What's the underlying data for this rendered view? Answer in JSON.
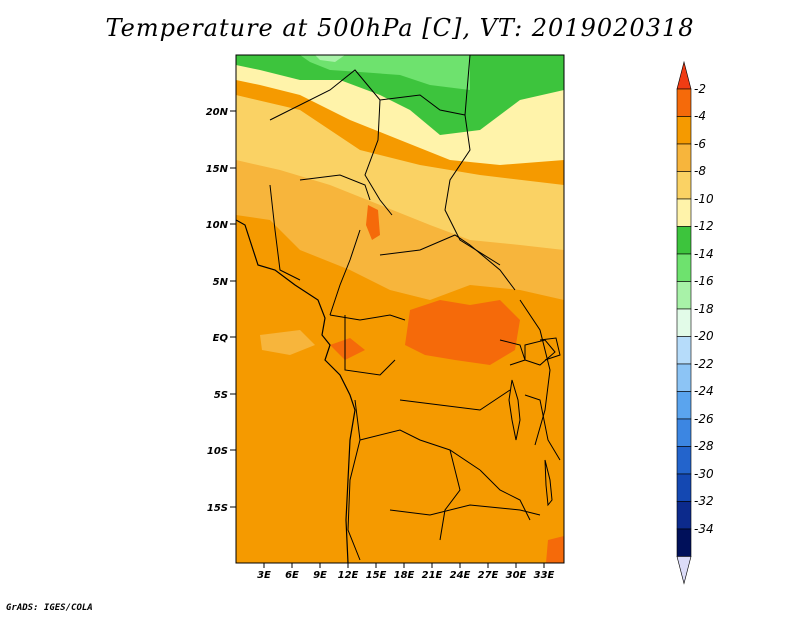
{
  "title": "Temperature at 500hPa [C], VT: 2019020318",
  "credit": "GrADS: IGES/COLA",
  "map": {
    "region": "Central Africa",
    "lat_labels": [
      "20N",
      "15N",
      "10N",
      "5N",
      "EQ",
      "5S",
      "10S",
      "15S"
    ],
    "lon_labels": [
      "3E",
      "6E",
      "9E",
      "12E",
      "15E",
      "18E",
      "21E",
      "24E",
      "27E",
      "30E",
      "33E"
    ]
  },
  "colorbar": {
    "labels": [
      "-2",
      "-4",
      "-6",
      "-8",
      "-10",
      "-12",
      "-14",
      "-16",
      "-18",
      "-20",
      "-22",
      "-24",
      "-26",
      "-28",
      "-30",
      "-32",
      "-34"
    ],
    "colors": [
      "#f03c14",
      "#f56a0a",
      "#f59a00",
      "#f7b53c",
      "#fad264",
      "#fff3aa",
      "#3dc43d",
      "#6ee26e",
      "#a8f2a8",
      "#e2fbe8",
      "#b6dcfa",
      "#8cc4f5",
      "#5aa4ee",
      "#3c86e2",
      "#2364cc",
      "#1448b2",
      "#0c2a8c",
      "#00105a"
    ],
    "low_end_color": "#dcdcf8"
  },
  "colors": {
    "orange_main": "#f59a00",
    "orange_light": "#f7b53c",
    "yellow": "#fad264",
    "pale_yellow": "#fff3aa",
    "green": "#3dc43d",
    "green_light": "#6ee26e",
    "red_orange": "#f56a0a"
  }
}
